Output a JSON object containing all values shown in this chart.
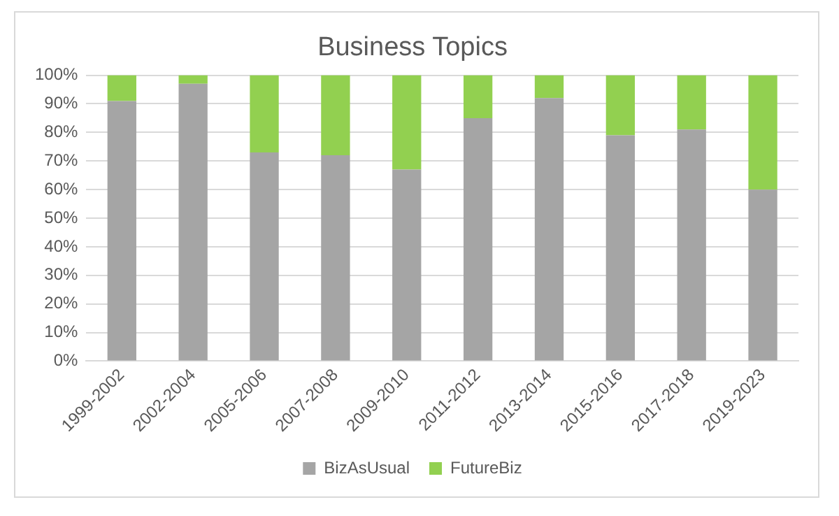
{
  "chart_data": {
    "type": "bar",
    "title": "Business Topics",
    "stacked": true,
    "categories": [
      "1999-2002",
      "2002-2004",
      "2005-2006",
      "2007-2008",
      "2009-2010",
      "2011-2012",
      "2013-2014",
      "2015-2016",
      "2017-2018",
      "2019-2023"
    ],
    "series": [
      {
        "name": "BizAsUsual",
        "color": "#a5a5a5",
        "values": [
          91,
          97,
          73,
          72,
          67,
          85,
          92,
          79,
          81,
          60
        ]
      },
      {
        "name": "FutureBiz",
        "color": "#92d050",
        "values": [
          9,
          3,
          27,
          28,
          33,
          15,
          8,
          21,
          19,
          40
        ]
      }
    ],
    "ylim": [
      0,
      100
    ],
    "yticks": [
      {
        "value": 0,
        "label": "0%"
      },
      {
        "value": 10,
        "label": "10%"
      },
      {
        "value": 20,
        "label": "20%"
      },
      {
        "value": 30,
        "label": "30%"
      },
      {
        "value": 40,
        "label": "40%"
      },
      {
        "value": 50,
        "label": "50%"
      },
      {
        "value": 60,
        "label": "60%"
      },
      {
        "value": 70,
        "label": "70%"
      },
      {
        "value": 80,
        "label": "80%"
      },
      {
        "value": 90,
        "label": "90%"
      },
      {
        "value": 100,
        "label": "100%"
      }
    ],
    "grid": "y",
    "legend": "bottom"
  }
}
